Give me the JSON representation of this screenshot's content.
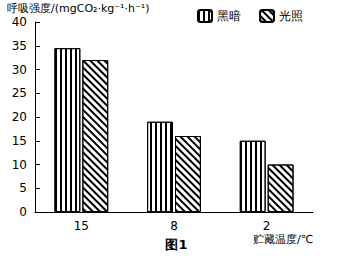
{
  "chart_data": {
    "type": "bar",
    "y_label": "呼吸强度/(mgCO₂·kg⁻¹·h⁻¹)",
    "x_label": "贮藏温度/℃",
    "annotations": [
      "图1"
    ],
    "categories": [
      "15",
      "8",
      "2"
    ],
    "series": [
      {
        "name": "黑暗",
        "color": "#000000",
        "marker": "vertical",
        "values": [
          34.5,
          19,
          15
        ]
      },
      {
        "name": "光照",
        "color": "#000000",
        "marker": "diagonal",
        "values": [
          32,
          16,
          10
        ]
      }
    ],
    "ylim": [
      0,
      40
    ],
    "yticks": [
      0,
      5,
      10,
      15,
      20,
      25,
      30,
      35,
      40
    ],
    "grid": false,
    "legend": "upper right"
  }
}
